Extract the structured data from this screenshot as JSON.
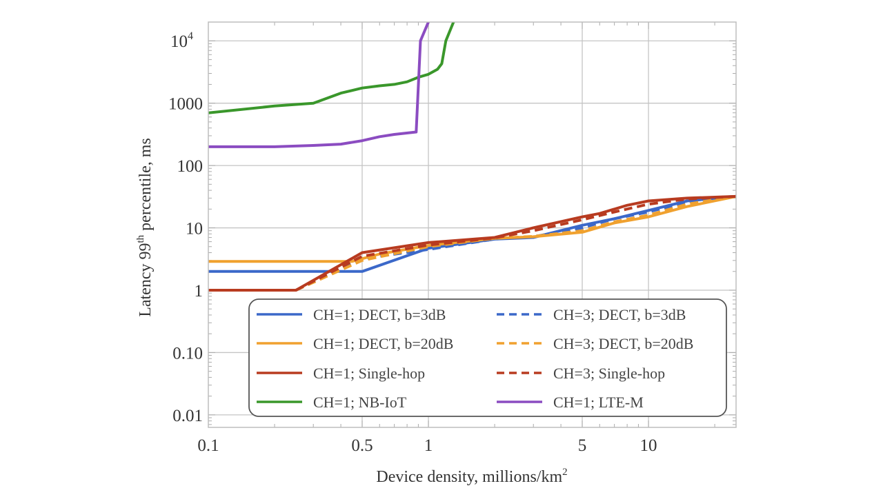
{
  "chart_data": {
    "type": "line",
    "title": "",
    "xlabel": "Device density, millions/km",
    "xlabel_sup": "2",
    "ylabel": "Latency 99",
    "ylabel_sup": "th",
    "ylabel_rest": " percentile, ms",
    "xscale": "log",
    "yscale": "log",
    "xlim": [
      0.1,
      25
    ],
    "ylim": [
      0.0063,
      20000
    ],
    "grid": true,
    "legend_position": "bottom-center",
    "xticks": [
      {
        "value": 0.1,
        "label": "0.1"
      },
      {
        "value": 0.5,
        "label": "0.5"
      },
      {
        "value": 1,
        "label": "1"
      },
      {
        "value": 5,
        "label": "5"
      },
      {
        "value": 10,
        "label": "10"
      }
    ],
    "yticks": [
      {
        "value": 0.01,
        "label": "0.01"
      },
      {
        "value": 0.1,
        "label": "0.10"
      },
      {
        "value": 1,
        "label": "1"
      },
      {
        "value": 10,
        "label": "10"
      },
      {
        "value": 100,
        "label": "100"
      },
      {
        "value": 1000,
        "label": "1000"
      },
      {
        "value": 10000,
        "label": "10",
        "sup": "4"
      }
    ],
    "series": [
      {
        "name": "CH=1; DECT, b=3dB",
        "color": "#3b68c9",
        "dash": false,
        "x": [
          0.1,
          0.5,
          1,
          2,
          3,
          5,
          7,
          10,
          15,
          25
        ],
        "y": [
          2,
          2,
          4.7,
          6.6,
          7,
          11,
          14,
          19,
          27,
          32
        ]
      },
      {
        "name": "CH=3; DECT, b=3dB",
        "color": "#3b68c9",
        "dash": true,
        "x": [
          0.25,
          0.5,
          1,
          2,
          3,
          5,
          7,
          10,
          15,
          25
        ],
        "y": [
          1,
          3.2,
          4.5,
          6.6,
          7.2,
          10,
          14,
          18,
          26,
          32
        ]
      },
      {
        "name": "CH=1; DECT, b=20dB",
        "color": "#f0a12f",
        "dash": false,
        "x": [
          0.1,
          0.45,
          0.6,
          1,
          2,
          3,
          5,
          7,
          10,
          15,
          25
        ],
        "y": [
          2.9,
          2.9,
          3.8,
          5.2,
          6.8,
          7.2,
          8.5,
          12,
          15,
          22,
          32
        ]
      },
      {
        "name": "CH=3; DECT, b=20dB",
        "color": "#f0a12f",
        "dash": true,
        "x": [
          0.25,
          0.5,
          1,
          2,
          3,
          5,
          7,
          10,
          15,
          25
        ],
        "y": [
          1,
          3,
          5,
          6.8,
          7.3,
          9,
          12.5,
          16,
          24,
          32
        ]
      },
      {
        "name": "CH=1; Single-hop",
        "color": "#b83b20",
        "dash": false,
        "x": [
          0.1,
          0.25,
          0.5,
          1,
          2,
          3,
          5,
          6,
          8,
          10,
          15,
          25
        ],
        "y": [
          1,
          1,
          4,
          5.8,
          7,
          10,
          15,
          17,
          23,
          27,
          30,
          32
        ]
      },
      {
        "name": "CH=3; Single-hop",
        "color": "#b83b20",
        "dash": true,
        "x": [
          0.25,
          0.5,
          1,
          2,
          3,
          5,
          7,
          10,
          15,
          25
        ],
        "y": [
          1,
          3.5,
          5.3,
          6.9,
          9,
          13.5,
          18,
          24,
          29,
          32
        ]
      },
      {
        "name": "CH=1; NB-IoT",
        "color": "#3a972b",
        "dash": false,
        "x": [
          0.1,
          0.2,
          0.3,
          0.4,
          0.5,
          0.6,
          0.7,
          0.8,
          0.9,
          1.0,
          1.1,
          1.15,
          1.2,
          1.3
        ],
        "y": [
          700,
          900,
          1000,
          1450,
          1750,
          1900,
          2000,
          2200,
          2600,
          2900,
          3500,
          4300,
          10000,
          20000
        ]
      },
      {
        "name": "CH=1; LTE-M",
        "color": "#8b4cc1",
        "dash": false,
        "x": [
          0.1,
          0.2,
          0.3,
          0.4,
          0.5,
          0.6,
          0.7,
          0.88,
          0.92,
          1.0
        ],
        "y": [
          200,
          200,
          210,
          220,
          250,
          290,
          315,
          345,
          10000,
          20000
        ]
      }
    ],
    "legend_order": [
      0,
      1,
      2,
      3,
      4,
      5,
      6,
      7
    ]
  }
}
